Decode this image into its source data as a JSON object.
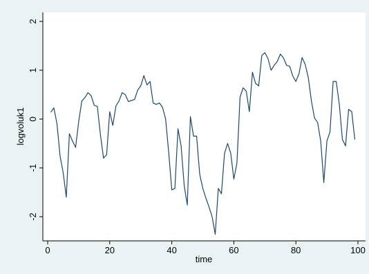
{
  "chart_data": {
    "type": "line",
    "xlabel": "time",
    "ylabel": "logvoluk1",
    "xlim": [
      0,
      100
    ],
    "ylim": [
      -2.5,
      2.2
    ],
    "x_ticks": [
      0,
      20,
      40,
      60,
      80,
      100
    ],
    "x_tick_labels": [
      "0",
      "20",
      "40",
      "60",
      "80",
      "100"
    ],
    "y_ticks": [
      -2,
      -1,
      0,
      1,
      2
    ],
    "y_tick_labels": [
      "-2",
      "-1",
      "0",
      "1",
      "2"
    ],
    "grid": false,
    "legend": false,
    "line_color": "#1a476f",
    "plot_background": "#ffffff",
    "graph_background": "#eaf2f3",
    "series": [
      {
        "x": [
          1,
          2,
          3,
          4,
          5,
          6,
          7,
          8,
          9,
          10,
          11,
          12,
          13,
          14,
          15,
          16,
          17,
          18,
          19,
          20,
          21,
          22,
          23,
          24,
          25,
          26,
          27,
          28,
          29,
          30,
          31,
          32,
          33,
          34,
          35,
          36,
          37,
          38,
          39,
          40,
          41,
          42,
          43,
          44,
          45,
          46,
          47,
          48,
          49,
          50,
          51,
          52,
          53,
          54,
          55,
          56,
          57,
          58,
          59,
          60,
          61,
          62,
          63,
          64,
          65,
          66,
          67,
          68,
          69,
          70,
          71,
          72,
          73,
          74,
          75,
          76,
          77,
          78,
          79,
          80,
          81,
          82,
          83,
          84,
          85,
          86,
          87,
          88,
          89,
          90,
          91,
          92,
          93,
          94,
          95,
          96,
          97,
          98,
          99
        ],
        "values": [
          0.14,
          0.23,
          -0.1,
          -0.76,
          -1.1,
          -1.6,
          -0.3,
          -0.45,
          -0.58,
          -0.05,
          0.37,
          0.44,
          0.54,
          0.48,
          0.28,
          0.26,
          -0.32,
          -0.8,
          -0.73,
          0.15,
          -0.13,
          0.27,
          0.37,
          0.54,
          0.5,
          0.36,
          0.38,
          0.4,
          0.59,
          0.68,
          0.89,
          0.7,
          0.77,
          0.33,
          0.3,
          0.33,
          0.24,
          0.01,
          -0.68,
          -1.45,
          -1.42,
          -0.2,
          -0.55,
          -1.36,
          -1.76,
          0.05,
          -0.35,
          -0.35,
          -1.13,
          -1.42,
          -1.62,
          -1.8,
          -2.0,
          -2.36,
          -1.42,
          -1.53,
          -0.7,
          -0.5,
          -0.7,
          -1.23,
          -0.9,
          0.45,
          0.64,
          0.57,
          0.15,
          0.96,
          0.73,
          0.68,
          1.3,
          1.36,
          1.24,
          1.0,
          1.1,
          1.18,
          1.33,
          1.25,
          1.1,
          1.08,
          0.88,
          0.77,
          0.93,
          1.26,
          1.12,
          0.85,
          0.37,
          0.02,
          -0.07,
          -0.45,
          -1.3,
          -0.45,
          -0.26,
          0.77,
          0.77,
          0.3,
          -0.42,
          -0.55,
          0.2,
          0.15,
          -0.42
        ]
      }
    ]
  }
}
